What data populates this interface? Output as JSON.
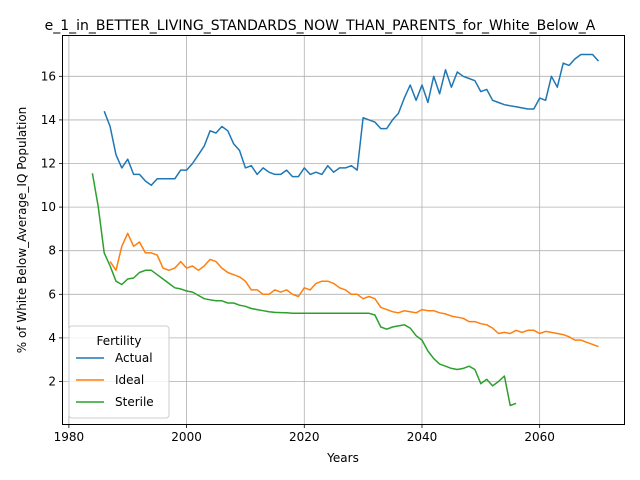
{
  "chart_data": {
    "type": "line",
    "title": "e_1_in_BETTER_LIVING_STANDARDS_NOW_THAN_PARENTS_for_White_Below_A",
    "xlabel": "Years",
    "ylabel": "% of White Below_Average_IQ Population",
    "xlim": [
      1979,
      2074.5
    ],
    "ylim": [
      0.05,
      17.85
    ],
    "xticks": [
      1980,
      2000,
      2020,
      2040,
      2060
    ],
    "yticks": [
      2,
      4,
      6,
      8,
      10,
      12,
      14,
      16
    ],
    "grid": true,
    "legend": {
      "title": "Fertility",
      "placement": "lower-left"
    },
    "series": [
      {
        "name": "Actual",
        "color": "#1f77b4",
        "points": [
          [
            1986,
            14.4
          ],
          [
            1987,
            13.7
          ],
          [
            1988,
            12.4
          ],
          [
            1989,
            11.8
          ],
          [
            1990,
            12.2
          ],
          [
            1991,
            11.5
          ],
          [
            1992,
            11.5
          ],
          [
            1993,
            11.2
          ],
          [
            1994,
            11.0
          ],
          [
            1995,
            11.3
          ],
          [
            1996,
            11.3
          ],
          [
            1997,
            11.3
          ],
          [
            1998,
            11.3
          ],
          [
            1999,
            11.7
          ],
          [
            2000,
            11.7
          ],
          [
            2001,
            12.0
          ],
          [
            2002,
            12.4
          ],
          [
            2003,
            12.8
          ],
          [
            2004,
            13.5
          ],
          [
            2005,
            13.4
          ],
          [
            2006,
            13.7
          ],
          [
            2007,
            13.5
          ],
          [
            2008,
            12.9
          ],
          [
            2009,
            12.6
          ],
          [
            2010,
            11.8
          ],
          [
            2011,
            11.9
          ],
          [
            2012,
            11.5
          ],
          [
            2013,
            11.8
          ],
          [
            2014,
            11.6
          ],
          [
            2015,
            11.5
          ],
          [
            2016,
            11.5
          ],
          [
            2017,
            11.7
          ],
          [
            2018,
            11.4
          ],
          [
            2019,
            11.4
          ],
          [
            2020,
            11.8
          ],
          [
            2021,
            11.5
          ],
          [
            2022,
            11.6
          ],
          [
            2023,
            11.5
          ],
          [
            2024,
            11.9
          ],
          [
            2025,
            11.6
          ],
          [
            2026,
            11.8
          ],
          [
            2027,
            11.8
          ],
          [
            2028,
            11.9
          ],
          [
            2029,
            11.7
          ],
          [
            2030,
            14.1
          ],
          [
            2031,
            14.0
          ],
          [
            2032,
            13.9
          ],
          [
            2033,
            13.6
          ],
          [
            2034,
            13.6
          ],
          [
            2035,
            14.0
          ],
          [
            2036,
            14.3
          ],
          [
            2037,
            15.0
          ],
          [
            2038,
            15.6
          ],
          [
            2039,
            14.9
          ],
          [
            2040,
            15.6
          ],
          [
            2041,
            14.8
          ],
          [
            2042,
            16.0
          ],
          [
            2043,
            15.2
          ],
          [
            2044,
            16.3
          ],
          [
            2045,
            15.5
          ],
          [
            2046,
            16.2
          ],
          [
            2047,
            16.0
          ],
          [
            2048,
            15.9
          ],
          [
            2049,
            15.8
          ],
          [
            2050,
            15.3
          ],
          [
            2051,
            15.4
          ],
          [
            2052,
            14.9
          ],
          [
            2053,
            14.8
          ],
          [
            2054,
            14.7
          ],
          [
            2055,
            14.65
          ],
          [
            2056,
            14.6
          ],
          [
            2057,
            14.55
          ],
          [
            2058,
            14.5
          ],
          [
            2059,
            14.5
          ],
          [
            2060,
            15.0
          ],
          [
            2061,
            14.9
          ],
          [
            2062,
            16.0
          ],
          [
            2063,
            15.5
          ],
          [
            2064,
            16.6
          ],
          [
            2065,
            16.5
          ],
          [
            2066,
            16.8
          ],
          [
            2067,
            17.0
          ],
          [
            2068,
            17.0
          ],
          [
            2069,
            17.0
          ],
          [
            2070,
            16.7
          ]
        ]
      },
      {
        "name": "Ideal",
        "color": "#ff7f0e",
        "points": [
          [
            1987,
            7.5
          ],
          [
            1988,
            7.1
          ],
          [
            1989,
            8.2
          ],
          [
            1990,
            8.8
          ],
          [
            1991,
            8.2
          ],
          [
            1992,
            8.4
          ],
          [
            1993,
            7.9
          ],
          [
            1994,
            7.9
          ],
          [
            1995,
            7.8
          ],
          [
            1996,
            7.2
          ],
          [
            1997,
            7.1
          ],
          [
            1998,
            7.2
          ],
          [
            1999,
            7.5
          ],
          [
            2000,
            7.2
          ],
          [
            2001,
            7.3
          ],
          [
            2002,
            7.1
          ],
          [
            2003,
            7.3
          ],
          [
            2004,
            7.6
          ],
          [
            2005,
            7.5
          ],
          [
            2006,
            7.2
          ],
          [
            2007,
            7.0
          ],
          [
            2008,
            6.9
          ],
          [
            2009,
            6.8
          ],
          [
            2010,
            6.6
          ],
          [
            2011,
            6.2
          ],
          [
            2012,
            6.2
          ],
          [
            2013,
            6.0
          ],
          [
            2014,
            6.0
          ],
          [
            2015,
            6.2
          ],
          [
            2016,
            6.1
          ],
          [
            2017,
            6.2
          ],
          [
            2018,
            6.0
          ],
          [
            2019,
            5.9
          ],
          [
            2020,
            6.3
          ],
          [
            2021,
            6.2
          ],
          [
            2022,
            6.5
          ],
          [
            2023,
            6.6
          ],
          [
            2024,
            6.6
          ],
          [
            2025,
            6.5
          ],
          [
            2026,
            6.3
          ],
          [
            2027,
            6.2
          ],
          [
            2028,
            6.0
          ],
          [
            2029,
            6.0
          ],
          [
            2030,
            5.8
          ],
          [
            2031,
            5.9
          ],
          [
            2032,
            5.8
          ],
          [
            2033,
            5.4
          ],
          [
            2034,
            5.3
          ],
          [
            2035,
            5.2
          ],
          [
            2036,
            5.15
          ],
          [
            2037,
            5.25
          ],
          [
            2038,
            5.2
          ],
          [
            2039,
            5.15
          ],
          [
            2040,
            5.3
          ],
          [
            2041,
            5.25
          ],
          [
            2042,
            5.25
          ],
          [
            2043,
            5.15
          ],
          [
            2044,
            5.1
          ],
          [
            2045,
            5.0
          ],
          [
            2046,
            4.95
          ],
          [
            2047,
            4.9
          ],
          [
            2048,
            4.75
          ],
          [
            2049,
            4.75
          ],
          [
            2050,
            4.65
          ],
          [
            2051,
            4.6
          ],
          [
            2052,
            4.45
          ],
          [
            2053,
            4.2
          ],
          [
            2054,
            4.25
          ],
          [
            2055,
            4.2
          ],
          [
            2056,
            4.35
          ],
          [
            2057,
            4.25
          ],
          [
            2058,
            4.35
          ],
          [
            2059,
            4.35
          ],
          [
            2060,
            4.2
          ],
          [
            2061,
            4.3
          ],
          [
            2062,
            4.25
          ],
          [
            2063,
            4.2
          ],
          [
            2064,
            4.15
          ],
          [
            2065,
            4.05
          ],
          [
            2066,
            3.9
          ],
          [
            2067,
            3.9
          ],
          [
            2068,
            3.8
          ],
          [
            2069,
            3.7
          ],
          [
            2070,
            3.6
          ]
        ]
      },
      {
        "name": "Sterile",
        "color": "#2ca02c",
        "points": [
          [
            1984,
            11.55
          ],
          [
            1985,
            10.0
          ],
          [
            1986,
            7.9
          ],
          [
            1987,
            7.3
          ],
          [
            1988,
            6.6
          ],
          [
            1989,
            6.45
          ],
          [
            1990,
            6.7
          ],
          [
            1991,
            6.75
          ],
          [
            1992,
            7.0
          ],
          [
            1993,
            7.1
          ],
          [
            1994,
            7.1
          ],
          [
            1995,
            6.9
          ],
          [
            1996,
            6.7
          ],
          [
            1997,
            6.5
          ],
          [
            1998,
            6.3
          ],
          [
            1999,
            6.25
          ],
          [
            2000,
            6.15
          ],
          [
            2001,
            6.1
          ],
          [
            2002,
            5.95
          ],
          [
            2003,
            5.8
          ],
          [
            2004,
            5.75
          ],
          [
            2005,
            5.7
          ],
          [
            2006,
            5.7
          ],
          [
            2007,
            5.6
          ],
          [
            2008,
            5.6
          ],
          [
            2009,
            5.5
          ],
          [
            2010,
            5.45
          ],
          [
            2011,
            5.35
          ],
          [
            2012,
            5.3
          ],
          [
            2013,
            5.25
          ],
          [
            2014,
            5.2
          ],
          [
            2015,
            5.17
          ],
          [
            2016,
            5.16
          ],
          [
            2017,
            5.15
          ],
          [
            2018,
            5.13
          ],
          [
            2019,
            5.13
          ],
          [
            2020,
            5.13
          ],
          [
            2021,
            5.13
          ],
          [
            2022,
            5.13
          ],
          [
            2023,
            5.13
          ],
          [
            2024,
            5.13
          ],
          [
            2025,
            5.13
          ],
          [
            2026,
            5.13
          ],
          [
            2027,
            5.13
          ],
          [
            2028,
            5.13
          ],
          [
            2029,
            5.13
          ],
          [
            2030,
            5.13
          ],
          [
            2031,
            5.13
          ],
          [
            2032,
            5.05
          ],
          [
            2033,
            4.5
          ],
          [
            2034,
            4.4
          ],
          [
            2035,
            4.5
          ],
          [
            2036,
            4.55
          ],
          [
            2037,
            4.6
          ],
          [
            2038,
            4.45
          ],
          [
            2039,
            4.1
          ],
          [
            2040,
            3.9
          ],
          [
            2041,
            3.4
          ],
          [
            2042,
            3.05
          ],
          [
            2043,
            2.8
          ],
          [
            2044,
            2.7
          ],
          [
            2045,
            2.6
          ],
          [
            2046,
            2.55
          ],
          [
            2047,
            2.6
          ],
          [
            2048,
            2.7
          ],
          [
            2049,
            2.55
          ],
          [
            2050,
            1.9
          ],
          [
            2051,
            2.1
          ],
          [
            2052,
            1.8
          ],
          [
            2053,
            2.0
          ],
          [
            2054,
            2.25
          ],
          [
            2055,
            0.9
          ],
          [
            2056,
            1.0
          ]
        ]
      }
    ]
  }
}
